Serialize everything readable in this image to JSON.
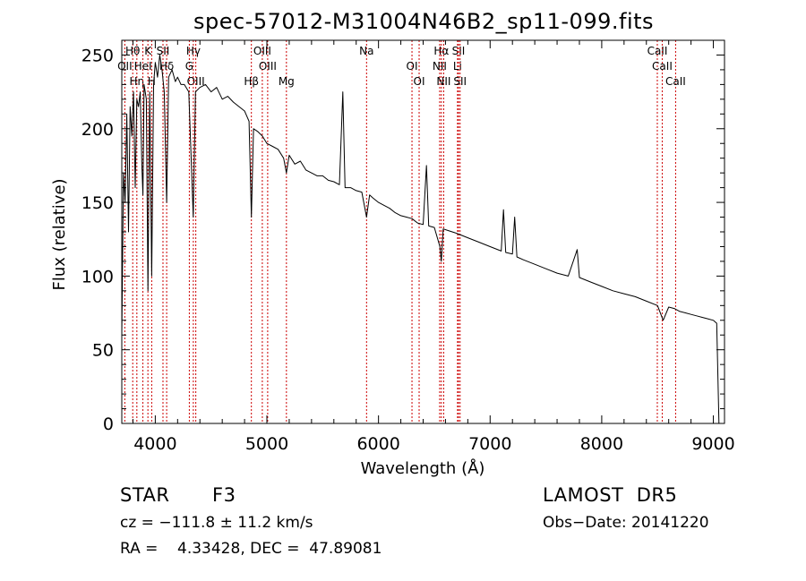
{
  "chart_data": {
    "type": "line",
    "title": "spec-57012-M31004N46B2_sp11-099.fits",
    "xlabel": "Wavelength (Å)",
    "ylabel": "Flux (relative)",
    "xlim": [
      3700,
      9100
    ],
    "ylim": [
      0,
      260
    ],
    "xticks": [
      4000,
      5000,
      6000,
      7000,
      8000,
      9000
    ],
    "yticks": [
      0,
      50,
      100,
      150,
      200,
      250
    ],
    "series": [
      {
        "x": [
          3700,
          3715,
          3730,
          3745,
          3760,
          3775,
          3790,
          3805,
          3820,
          3835,
          3850,
          3865,
          3880,
          3889,
          3900,
          3920,
          3934,
          3950,
          3968,
          3985,
          4000,
          4020,
          4040,
          4060,
          4080,
          4102,
          4120,
          4150,
          4180,
          4200,
          4230,
          4260,
          4300,
          4340,
          4360,
          4400,
          4450,
          4500,
          4550,
          4600,
          4650,
          4700,
          4750,
          4800,
          4840,
          4861,
          4880,
          4920,
          4960,
          5000,
          5050,
          5100,
          5150,
          5175,
          5200,
          5250,
          5300,
          5350,
          5400,
          5450,
          5500,
          5550,
          5600,
          5650,
          5680,
          5700,
          5750,
          5800,
          5850,
          5893,
          5920,
          5950,
          6000,
          6050,
          6100,
          6150,
          6200,
          6250,
          6300,
          6350,
          6400,
          6430,
          6450,
          6500,
          6550,
          6563,
          6580,
          6620,
          6700,
          6800,
          6900,
          7000,
          7100,
          7120,
          7140,
          7200,
          7220,
          7240,
          7300,
          7400,
          7500,
          7600,
          7700,
          7780,
          7800,
          7900,
          8000,
          8100,
          8200,
          8300,
          8400,
          8500,
          8550,
          8600,
          8650,
          8700,
          8750,
          8800,
          8850,
          8900,
          8950,
          9000,
          9030,
          9050
        ],
        "y": [
          60,
          170,
          150,
          210,
          130,
          215,
          195,
          225,
          160,
          220,
          215,
          225,
          175,
          155,
          230,
          220,
          90,
          225,
          100,
          230,
          245,
          235,
          250,
          240,
          225,
          150,
          235,
          240,
          232,
          235,
          230,
          230,
          225,
          140,
          225,
          228,
          230,
          225,
          228,
          220,
          222,
          218,
          215,
          212,
          205,
          140,
          200,
          198,
          195,
          190,
          188,
          186,
          180,
          170,
          182,
          176,
          178,
          172,
          170,
          168,
          168,
          165,
          164,
          162,
          225,
          160,
          160,
          158,
          157,
          140,
          155,
          153,
          150,
          148,
          146,
          143,
          141,
          140,
          139,
          136,
          135,
          175,
          134,
          133,
          120,
          110,
          132,
          131,
          129,
          126,
          123,
          120,
          117,
          145,
          116,
          115,
          140,
          113,
          111,
          108,
          105,
          102,
          100,
          118,
          99,
          96,
          93,
          90,
          88,
          86,
          83,
          80,
          70,
          79,
          78,
          76,
          75,
          74,
          73,
          72,
          71,
          70,
          68,
          0
        ]
      }
    ],
    "line_markers": [
      {
        "label": "Hθ",
        "x": 3798
      },
      {
        "label": "OII",
        "x": 3727
      },
      {
        "label": "Hη",
        "x": 3835
      },
      {
        "label": "K",
        "x": 3934
      },
      {
        "label": "HeI",
        "x": 3889
      },
      {
        "label": "H",
        "x": 3968
      },
      {
        "label": "SII",
        "x": 4069
      },
      {
        "label": "Hδ",
        "x": 4102
      },
      {
        "label": "OIII",
        "x": 4363
      },
      {
        "label": "Hγ",
        "x": 4341
      },
      {
        "label": "G",
        "x": 4305
      },
      {
        "label": "Hβ",
        "x": 4861
      },
      {
        "label": "OIII",
        "x": 4959
      },
      {
        "label": "OIII",
        "x": 5007
      },
      {
        "label": "Mg",
        "x": 5175
      },
      {
        "label": "Na",
        "x": 5893
      },
      {
        "label": "OI",
        "x": 6300
      },
      {
        "label": "OI",
        "x": 6364
      },
      {
        "label": "Hα",
        "x": 6563
      },
      {
        "label": "NII",
        "x": 6548
      },
      {
        "label": "NII",
        "x": 6584
      },
      {
        "label": "SII",
        "x": 6717
      },
      {
        "label": "Li",
        "x": 6708
      },
      {
        "label": "SII",
        "x": 6731
      },
      {
        "label": "CaII",
        "x": 8498
      },
      {
        "label": "CaII",
        "x": 8542
      },
      {
        "label": "CaII",
        "x": 8662
      }
    ],
    "marker_color": "#cc0000",
    "line_color": "#000000",
    "grid": false
  },
  "info": {
    "object_class": "STAR",
    "subclass": "F3",
    "survey": "LAMOST  DR5",
    "cz": "cz = −111.8 ± 11.2 km/s",
    "obs_date": "Obs−Date: 20141220",
    "coords": "RA =    4.33428, DEC =  47.89081"
  }
}
